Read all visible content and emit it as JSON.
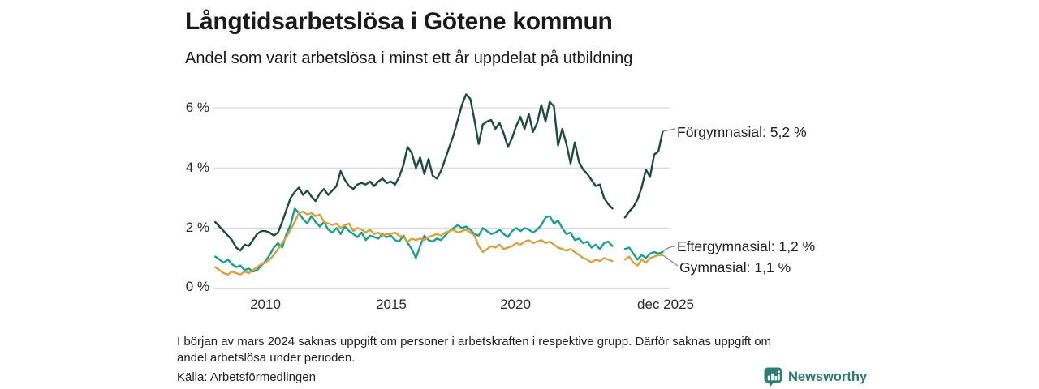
{
  "page": {
    "title": "Långtidsarbetslösa i Götene kommun",
    "subtitle": "Andel som varit arbetslösa i minst ett år uppdelat på utbildning",
    "footnote_line1": "I början av mars 2024 saknas uppgift om personer i arbetskraften i respektive grupp. Därför saknas uppgift om",
    "footnote_line2": "andel arbetslösa under perioden.",
    "source": "Källa: Arbetsförmedlingen",
    "brand_name": "Newsworthy",
    "brand_icon": "bar-chart-bubble-icon"
  },
  "colors": {
    "forgymnasial": "#1d4b3e",
    "eftergymnasial": "#18a08c",
    "gymnasial": "#d5a23e",
    "gridline": "#dcdcdc",
    "text": "#1a1a1a",
    "brand_teal": "#2a7c6d",
    "background": "#ffffff"
  },
  "chart_data": {
    "type": "line",
    "title": "Långtidsarbetslösa i Götene kommun",
    "subtitle": "Andel som varit arbetslösa i minst ett år uppdelat på utbildning",
    "xlabel": "",
    "ylabel": "",
    "unit": "%",
    "xlim": [
      2008,
      2026
    ],
    "ylim": [
      0,
      6.6
    ],
    "grid": "horizontal",
    "legend_position": "right-end-labels",
    "data_gap_period": "early 2024 (mars 2024)",
    "x_start": 2008.0,
    "x_step_years": 0.16667,
    "x_axis": {
      "ticks": [
        {
          "label": "2010",
          "value": 2010
        },
        {
          "label": "2015",
          "value": 2015
        },
        {
          "label": "2020",
          "value": 2020
        },
        {
          "label": "dec 2025",
          "value": 2025.917
        }
      ]
    },
    "y_axis": {
      "ticks": [
        {
          "label": "0 %",
          "value": 0
        },
        {
          "label": "2 %",
          "value": 2
        },
        {
          "label": "4 %",
          "value": 4
        },
        {
          "label": "6 %",
          "value": 6
        }
      ]
    },
    "series": [
      {
        "id": "forgymnasial",
        "name": "Förgymnasial",
        "end_label": "Förgymnasial: 5,2 %",
        "end_value": 5.2,
        "color": "#1d4b3e",
        "values": [
          2.2,
          2.05,
          1.9,
          1.75,
          1.6,
          1.35,
          1.25,
          1.45,
          1.4,
          1.6,
          1.8,
          1.9,
          1.9,
          1.85,
          1.75,
          1.85,
          2.2,
          2.6,
          3.0,
          3.2,
          3.35,
          3.1,
          3.25,
          3.05,
          2.9,
          3.15,
          3.3,
          3.1,
          3.25,
          3.4,
          3.9,
          3.6,
          3.4,
          3.3,
          3.45,
          3.5,
          3.45,
          3.55,
          3.4,
          3.55,
          3.65,
          3.5,
          3.55,
          3.45,
          3.7,
          4.1,
          4.7,
          4.5,
          4.0,
          4.35,
          3.8,
          4.3,
          3.75,
          3.65,
          3.9,
          4.3,
          4.7,
          5.1,
          5.6,
          6.1,
          6.45,
          6.3,
          5.6,
          4.8,
          5.45,
          5.55,
          5.6,
          5.3,
          5.5,
          5.15,
          4.7,
          5.0,
          5.4,
          5.7,
          5.3,
          5.8,
          5.2,
          5.5,
          6.1,
          5.55,
          6.2,
          6.05,
          4.75,
          5.3,
          4.8,
          4.15,
          4.85,
          4.2,
          3.95,
          3.8,
          3.6,
          3.4,
          3.45,
          3.0,
          2.8,
          2.65,
          null,
          null,
          2.35,
          2.55,
          2.7,
          2.95,
          3.35,
          3.95,
          3.7,
          4.45,
          4.55,
          5.2
        ]
      },
      {
        "id": "eftergymnasial",
        "name": "Eftergymnasial",
        "end_label": "Eftergymnasial: 1,2 %",
        "end_value": 1.2,
        "color": "#18a08c",
        "values": [
          1.05,
          0.95,
          0.85,
          0.95,
          0.8,
          0.7,
          0.75,
          0.6,
          0.65,
          0.55,
          0.6,
          0.75,
          0.9,
          1.1,
          1.35,
          1.5,
          1.35,
          1.8,
          2.1,
          2.65,
          2.5,
          2.3,
          2.15,
          2.4,
          2.2,
          2.05,
          2.2,
          1.95,
          1.85,
          2.0,
          1.8,
          2.05,
          1.9,
          1.8,
          1.7,
          1.85,
          1.6,
          1.75,
          1.7,
          1.65,
          1.8,
          1.7,
          1.75,
          1.6,
          1.55,
          1.75,
          1.5,
          1.3,
          1.0,
          1.4,
          1.75,
          1.6,
          1.55,
          1.65,
          1.6,
          1.75,
          1.9,
          2.0,
          2.1,
          2.0,
          2.05,
          1.95,
          1.8,
          1.75,
          2.0,
          1.9,
          1.8,
          1.85,
          1.95,
          1.8,
          1.7,
          1.9,
          2.0,
          1.9,
          2.0,
          1.95,
          1.85,
          1.95,
          2.1,
          2.35,
          2.4,
          2.15,
          2.25,
          2.0,
          1.8,
          1.85,
          1.6,
          1.65,
          1.5,
          1.55,
          1.35,
          1.45,
          1.3,
          1.5,
          1.55,
          1.4,
          null,
          null,
          1.3,
          1.35,
          1.15,
          0.95,
          1.1,
          1.0,
          1.15,
          1.2,
          1.15,
          1.2
        ]
      },
      {
        "id": "gymnasial",
        "name": "Gymnasial",
        "end_label": "Gymnasial: 1,1 %",
        "end_value": 1.1,
        "color": "#d5a23e",
        "values": [
          0.7,
          0.6,
          0.5,
          0.45,
          0.55,
          0.5,
          0.45,
          0.55,
          0.5,
          0.6,
          0.7,
          0.8,
          0.85,
          0.95,
          1.1,
          1.3,
          1.5,
          1.7,
          1.95,
          2.2,
          2.5,
          2.55,
          2.45,
          2.5,
          2.4,
          2.45,
          2.2,
          2.15,
          2.1,
          2.15,
          2.0,
          2.1,
          2.15,
          1.9,
          2.0,
          1.95,
          1.85,
          1.95,
          1.8,
          1.85,
          1.75,
          1.8,
          1.8,
          1.85,
          1.75,
          1.7,
          1.55,
          1.65,
          1.6,
          1.65,
          1.6,
          1.7,
          1.75,
          1.8,
          1.75,
          1.85,
          1.9,
          1.95,
          1.85,
          1.9,
          1.95,
          1.85,
          1.75,
          1.4,
          1.2,
          1.3,
          1.4,
          1.35,
          1.45,
          1.3,
          1.35,
          1.4,
          1.5,
          1.45,
          1.55,
          1.6,
          1.5,
          1.55,
          1.6,
          1.5,
          1.55,
          1.45,
          1.35,
          1.3,
          1.25,
          1.3,
          1.2,
          1.1,
          1.0,
          0.95,
          0.85,
          0.95,
          0.9,
          1.0,
          0.95,
          0.9,
          null,
          null,
          0.95,
          1.05,
          0.85,
          0.75,
          0.95,
          0.85,
          1.0,
          1.05,
          1.1,
          1.1
        ]
      }
    ]
  }
}
